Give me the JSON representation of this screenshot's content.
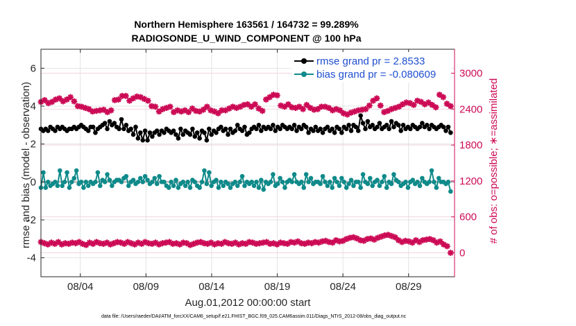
{
  "chart_data": {
    "type": "line",
    "title": "Northern Hemisphere 163561 / 164732 = 99.289%",
    "subtitle": "RADIOSONDE_U_WIND_COMPONENT @ 100 hPa",
    "xlabel": "Aug.01,2012 00:00:00 start",
    "ylabel_left": "rmse and bias (model - observation)",
    "ylabel_right": "# of obs: o=possible; ∗=assimilated",
    "footnote": "data file: /Users/raeder/DAI/ATM_forcXX/CAM6_setup/f.e21.FHIST_BGC.f09_025.CAM6assim.011/Diags_NTrS_2012-08/obs_diag_output.nc",
    "xlim": [
      1.0,
      32.5
    ],
    "ylim_left": [
      -5,
      7
    ],
    "ylim_right": [
      -400,
      3400
    ],
    "x_ticks": [
      4,
      9,
      14,
      19,
      24,
      29
    ],
    "x_tick_labels": [
      "08/04",
      "08/09",
      "08/14",
      "08/19",
      "08/24",
      "08/29"
    ],
    "y_left_ticks": [
      -4,
      -2,
      0,
      2,
      4,
      6
    ],
    "y_left_tick_labels": [
      "-4",
      "-2",
      "0",
      "2",
      "4",
      "6"
    ],
    "y_right_ticks": [
      0,
      600,
      1200,
      1800,
      2400,
      3000
    ],
    "y_right_tick_labels": [
      "0",
      "600",
      "1200",
      "1800",
      "2400",
      "3000"
    ],
    "grid": true,
    "zero_line": 0,
    "legend_position": "top-right",
    "colors": {
      "rmse": "#000000",
      "bias": "#0f8a8a",
      "obs": "#cc0a55",
      "legend_text": "#1f4fd0",
      "zero_line": "#b0b0b0"
    },
    "series": [
      {
        "name": "rmse grand pr = 2.8533",
        "axis": "left",
        "values": [
          2.8,
          2.7,
          2.8,
          2.7,
          2.9,
          2.8,
          2.7,
          2.9,
          2.8,
          2.9,
          2.8,
          2.7,
          2.8,
          2.8,
          2.9,
          2.8,
          2.9,
          3.0,
          2.9,
          2.8,
          2.7,
          2.9,
          2.9,
          2.6,
          2.8,
          2.9,
          3.0,
          3.1,
          2.8,
          3.2,
          3.0,
          3.1,
          2.9,
          2.8,
          3.3,
          2.8,
          3.0,
          2.7,
          2.8,
          2.5,
          2.9,
          2.3,
          2.6,
          2.2,
          2.7,
          2.2,
          2.6,
          2.4,
          2.6,
          2.7,
          2.5,
          2.7,
          2.6,
          2.8,
          2.7,
          2.6,
          2.7,
          2.5,
          2.3,
          2.8,
          2.5,
          2.7,
          2.6,
          2.5,
          2.8,
          2.4,
          2.6,
          2.3,
          2.7,
          2.6,
          2.2,
          2.8,
          2.5,
          2.7,
          2.6,
          2.8,
          2.9,
          2.7,
          2.8,
          2.5,
          2.8,
          2.6,
          2.7,
          3.0,
          2.8,
          2.7,
          2.9,
          2.5,
          2.6,
          2.8,
          2.9,
          2.8,
          3.0,
          2.7,
          2.9,
          2.8,
          2.9,
          2.8,
          3.0,
          2.7,
          2.9,
          2.8,
          3.0,
          2.9,
          2.8,
          2.9,
          2.8,
          3.0,
          2.7,
          2.9,
          2.8,
          3.0,
          2.9,
          2.6,
          2.8,
          2.7,
          2.9,
          2.7,
          2.8,
          2.6,
          2.8,
          2.9,
          2.7,
          2.8,
          2.6,
          2.9,
          2.8,
          2.6,
          2.9,
          2.8,
          3.0,
          2.7,
          3.0,
          2.9,
          2.7,
          3.5,
          3.1,
          2.8,
          3.2,
          2.9,
          3.0,
          2.8,
          2.9,
          3.1,
          2.8,
          2.9,
          3.0,
          2.8,
          3.2,
          2.9,
          3.1,
          3.0,
          2.7,
          3.0,
          2.8,
          2.9,
          2.8,
          3.0,
          2.9,
          2.8,
          2.9,
          3.1,
          2.9,
          3.0,
          2.8,
          3.0,
          2.9,
          2.8,
          2.9,
          3.0,
          2.9,
          2.7,
          2.9,
          2.6
        ]
      },
      {
        "name": "bias grand pr = -0.080609",
        "axis": "left",
        "values": [
          -0.3,
          0.5,
          -0.3,
          0.0,
          -0.2,
          -0.1,
          0.0,
          -0.2,
          0.6,
          -0.2,
          0.0,
          0.5,
          -0.3,
          0.0,
          0.2,
          0.6,
          -0.1,
          0.0,
          -0.3,
          0.0,
          -0.2,
          0.0,
          -0.1,
          0.0,
          0.5,
          -0.2,
          0.1,
          0.0,
          0.4,
          0.1,
          -0.2,
          0.0,
          0.1,
          0.1,
          0.0,
          0.2,
          0.3,
          -0.2,
          0.0,
          0.1,
          -0.1,
          0.0,
          0.2,
          0.0,
          0.3,
          0.1,
          -0.1,
          0.0,
          0.2,
          -0.1,
          0.3,
          0.0,
          0.0,
          -0.2,
          -0.3,
          0.0,
          -0.2,
          0.1,
          -0.3,
          -0.1,
          0.0,
          -0.2,
          0.0,
          -0.3,
          0.1,
          0.0,
          -0.2,
          -0.3,
          0.0,
          0.6,
          -0.1,
          0.5,
          -0.2,
          0.0,
          0.1,
          -0.3,
          0.0,
          -0.2,
          0.0,
          -0.1,
          -0.3,
          -0.1,
          0.0,
          -0.2,
          0.0,
          0.3,
          -0.2,
          0.0,
          -0.1,
          0.0,
          -0.2,
          0.0,
          -0.3,
          0.1,
          -0.4,
          0.0,
          -0.1,
          0.0,
          0.4,
          -0.2,
          -0.1,
          0.2,
          0.0,
          -0.3,
          0.0,
          0.1,
          0.0,
          0.4,
          0.0,
          -0.1,
          0.0,
          -0.3,
          0.4,
          0.0,
          0.2,
          -0.1,
          0.0,
          0.0,
          -0.1,
          0.3,
          0.0,
          -0.2,
          0.0,
          -0.3,
          0.2,
          0.0,
          -0.2,
          0.2,
          0.0,
          -0.3,
          -0.1,
          0.1,
          -0.2,
          0.0,
          0.0,
          -0.3,
          0.4,
          0.0,
          -0.1,
          0.2,
          -0.2,
          0.0,
          0.1,
          -0.2,
          0.0,
          0.3,
          -0.3,
          0.0,
          -0.1,
          0.4,
          0.1,
          0.0,
          -0.2,
          -0.1,
          0.0,
          -0.3,
          0.0,
          0.1,
          -0.1,
          0.0,
          -0.2,
          0.2,
          0.0,
          -0.1,
          0.0,
          0.6,
          0.0,
          -0.3,
          0.2,
          0.0,
          0.0,
          -0.1,
          0.0,
          -0.5
        ]
      },
      {
        "name": "assimilated",
        "axis": "right",
        "values": [
          2520,
          2550,
          2500,
          2520,
          2560,
          2580,
          2530,
          2560,
          2600,
          2530,
          2450,
          2440,
          2420,
          2400,
          2360,
          2370,
          2380,
          2390,
          2350,
          2380,
          2550,
          2560,
          2620,
          2620,
          2540,
          2580,
          2610,
          2600,
          2570,
          2540,
          2450,
          2440,
          2360,
          2400,
          2420,
          2440,
          2350,
          2380,
          2360,
          2380,
          2350,
          2410,
          2370,
          2360,
          2390,
          2440,
          2380,
          2360,
          2330,
          2380,
          2380,
          2410,
          2440,
          2420,
          2440,
          2470,
          2480,
          2440,
          2480,
          2410,
          2370,
          2560,
          2600,
          2640,
          2630,
          2460,
          2440,
          2480,
          2430,
          2420,
          2440,
          2400,
          2470,
          2420,
          2390,
          2400,
          2440,
          2440,
          2420,
          2380,
          2400,
          2380,
          2330,
          2310,
          2340,
          2360,
          2380,
          2390,
          2400,
          2460,
          2540,
          2580,
          2460,
          2350,
          2370,
          2400,
          2420,
          2440,
          2480,
          2510,
          2500,
          2470,
          2540,
          2520,
          2480,
          2510,
          2470,
          2430,
          2640,
          2600,
          2490,
          2450
        ]
      },
      {
        "name": "possible",
        "axis": "right",
        "values": [
          180,
          160,
          140,
          170,
          150,
          180,
          140,
          160,
          150,
          170,
          160,
          180,
          150,
          130,
          170,
          150,
          180,
          160,
          150,
          170,
          140,
          160,
          180,
          170,
          150,
          180,
          160,
          140,
          170,
          150,
          180,
          160,
          150,
          170,
          140,
          160,
          170,
          180,
          150,
          160,
          140,
          170,
          160,
          130,
          150,
          170,
          180,
          160,
          150,
          170,
          140,
          160,
          150,
          180,
          160,
          150,
          170,
          140,
          160,
          150,
          180,
          170,
          150,
          160,
          170,
          180,
          150,
          160,
          140,
          170,
          160,
          150,
          180,
          170,
          190,
          160,
          150,
          170,
          160,
          180,
          170,
          190,
          200,
          180,
          170,
          210,
          190,
          200,
          230,
          250,
          260,
          240,
          210,
          200,
          230,
          240,
          220,
          250,
          270,
          290,
          300,
          280,
          260,
          210,
          180,
          200,
          190,
          170,
          210,
          180,
          210,
          220,
          230,
          210,
          170,
          190,
          140,
          110,
          0
        ]
      }
    ]
  }
}
